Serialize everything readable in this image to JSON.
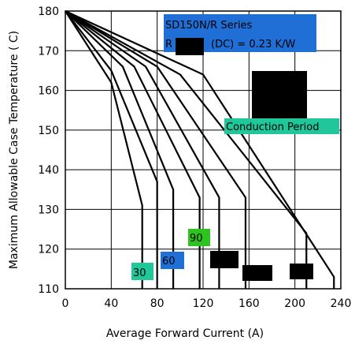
{
  "chart_data": {
    "type": "line",
    "xlabel": "Average Forward Current (A)",
    "ylabel": "Maximum Allowable Case Temperature ( C)",
    "xlim": [
      0,
      240
    ],
    "ylim": [
      110,
      180
    ],
    "x_ticks": [
      0,
      40,
      80,
      120,
      160,
      200,
      240
    ],
    "y_ticks": [
      110,
      120,
      130,
      140,
      150,
      160,
      170,
      180
    ],
    "grid": true,
    "series": [
      {
        "points": [
          [
            0,
            180
          ],
          [
            40,
            162
          ],
          [
            67,
            131
          ],
          [
            67,
            110
          ]
        ]
      },
      {
        "points": [
          [
            0,
            180
          ],
          [
            40,
            165
          ],
          [
            80,
            137
          ],
          [
            80,
            110
          ]
        ]
      },
      {
        "points": [
          [
            0,
            180
          ],
          [
            50,
            166
          ],
          [
            94,
            135
          ],
          [
            94,
            110
          ]
        ]
      },
      {
        "points": [
          [
            0,
            180
          ],
          [
            60,
            166
          ],
          [
            117,
            133
          ],
          [
            117,
            110
          ]
        ]
      },
      {
        "points": [
          [
            0,
            180
          ],
          [
            70,
            166
          ],
          [
            134,
            133
          ],
          [
            134,
            110
          ]
        ]
      },
      {
        "points": [
          [
            0,
            180
          ],
          [
            80,
            166
          ],
          [
            157,
            133
          ],
          [
            157,
            110
          ]
        ]
      },
      {
        "points": [
          [
            0,
            180
          ],
          [
            100,
            164
          ],
          [
            210,
            124
          ],
          [
            210,
            110
          ]
        ]
      },
      {
        "points": [
          [
            0,
            180
          ],
          [
            120,
            164
          ],
          [
            234,
            113
          ],
          [
            234,
            110
          ]
        ]
      }
    ],
    "annotations": {
      "series_title": "SD150N/R Series",
      "thermal_prefix": "R",
      "thermal_suffix": "(DC) = 0.23 K/W",
      "conduction_label": "Conduction Period",
      "curve_labels": [
        "30",
        "60",
        "90"
      ]
    },
    "colors": {
      "title_box": "#1f6fd6",
      "conduction_box": "#1fc79a",
      "label_30": "#1fc79a",
      "label_60": "#1f6fd6",
      "label_90": "#2ec41f"
    }
  }
}
